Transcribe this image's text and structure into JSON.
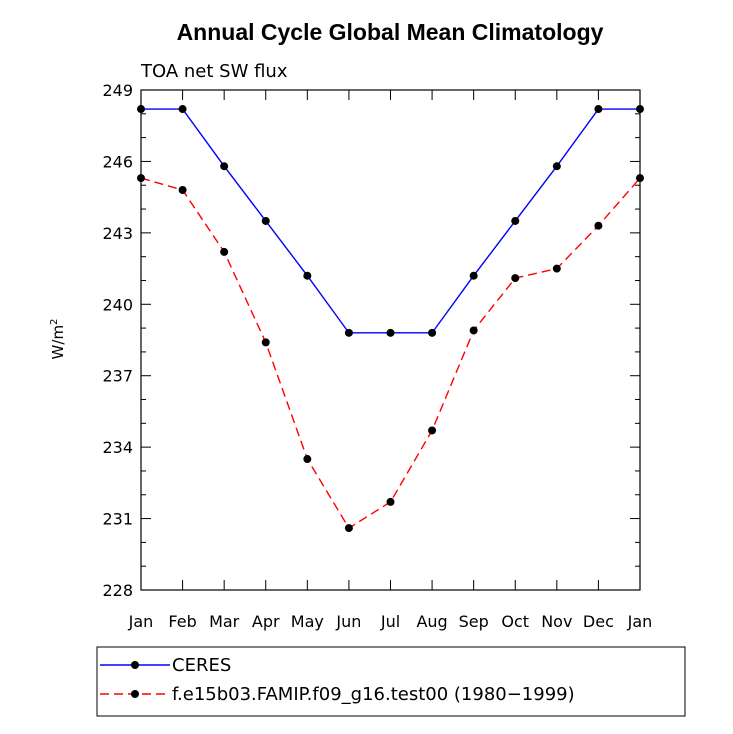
{
  "chart_data": {
    "type": "line",
    "title": "Annual Cycle Global Mean Climatology",
    "subtitle": "TOA net SW flux",
    "ylabel": "W/m",
    "ylabel_superscript": "2",
    "xlabel": "",
    "categories": [
      "Jan",
      "Feb",
      "Mar",
      "Apr",
      "May",
      "Jun",
      "Jul",
      "Aug",
      "Sep",
      "Oct",
      "Nov",
      "Dec",
      "Jan"
    ],
    "ylim": [
      228,
      249
    ],
    "yticks": [
      228,
      231,
      234,
      237,
      240,
      243,
      246,
      249
    ],
    "series": [
      {
        "name": "CERES",
        "color": "#0000ff",
        "dash": "solid",
        "values": [
          248.2,
          248.2,
          245.8,
          243.5,
          241.2,
          238.8,
          238.8,
          238.8,
          241.2,
          243.5,
          245.8,
          248.2,
          248.2
        ]
      },
      {
        "name": "f.e15b03.FAMIP.f09_g16.test00 (1980−1999)",
        "color": "#ff0000",
        "dash": "dashed",
        "values": [
          245.3,
          244.8,
          242.2,
          238.4,
          233.5,
          230.6,
          231.7,
          234.7,
          238.9,
          241.1,
          241.5,
          243.3,
          245.3
        ]
      }
    ],
    "legend_position": "bottom-left"
  }
}
